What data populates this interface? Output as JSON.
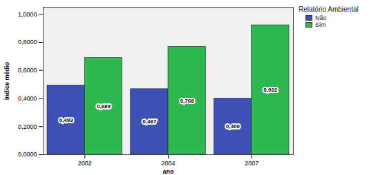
{
  "chart_data": {
    "type": "bar",
    "x_label": "ano",
    "y_label": "Índice médio",
    "categories": [
      "2002",
      "2004",
      "2007"
    ],
    "series": [
      {
        "name": "Não",
        "color": "#3f50b4",
        "values": [
          0.493,
          0.467,
          0.4
        ],
        "value_labels": [
          "0,493",
          "0,467",
          "0,400"
        ]
      },
      {
        "name": "Sim",
        "color": "#2fb84f",
        "values": [
          0.689,
          0.768,
          0.922
        ],
        "value_labels": [
          "0,689",
          "0,768",
          "0,922"
        ]
      }
    ],
    "ylim": [
      0,
      1.05
    ],
    "yticks": [
      {
        "value": 0,
        "label": "0,0000"
      },
      {
        "value": 0.2,
        "label": "0,2000"
      },
      {
        "value": 0.4,
        "label": "0,4000"
      },
      {
        "value": 0.6,
        "label": "0,6000"
      },
      {
        "value": 0.8,
        "label": "0,8000"
      },
      {
        "value": 1,
        "label": "1,0000"
      }
    ],
    "legend_title": "Relatório Ambiental",
    "legend": "right",
    "grid": false,
    "data_labels": true
  }
}
